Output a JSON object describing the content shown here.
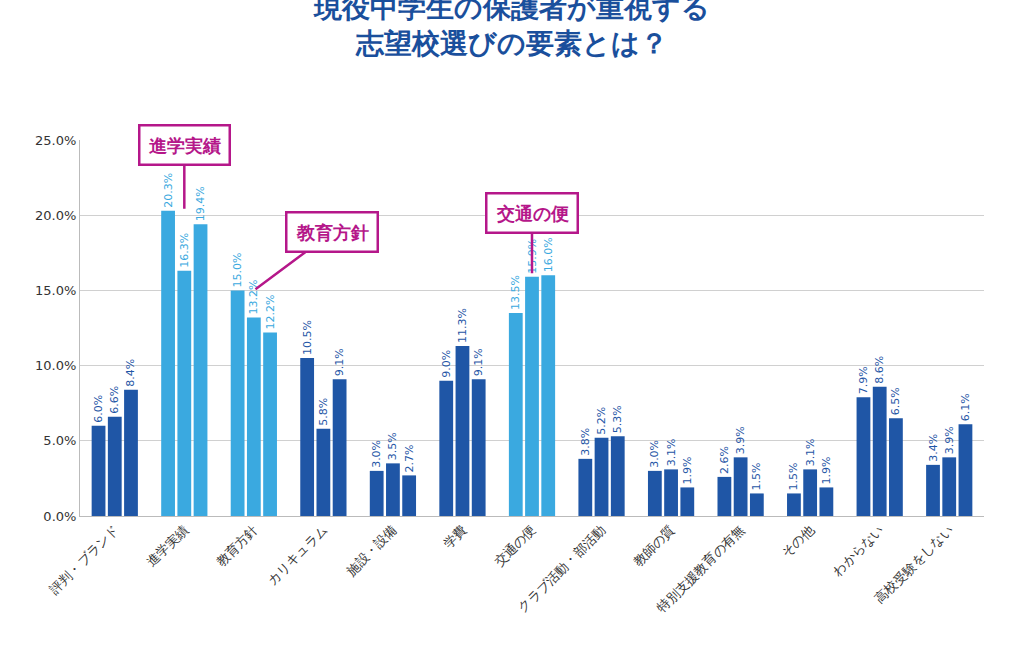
{
  "chart_data": {
    "type": "bar",
    "title": "現役中学生の保護者が重視する\n志望校選びの要素とは？",
    "categories": [
      "評判・ブランド",
      "進学実績",
      "教育方針",
      "カリキュラム",
      "施設・設備",
      "学費",
      "交通の便",
      "クラブ活動・部活動",
      "教師の質",
      "特別支援教育の有無",
      "その他",
      "わからない",
      "高校受験をしない"
    ],
    "series": [
      {
        "values": [
          6.0,
          20.3,
          15.0,
          10.5,
          3.0,
          9.0,
          13.5,
          3.8,
          3.0,
          2.6,
          1.5,
          7.9,
          3.4
        ],
        "value_labels": [
          "6.0%",
          "20.3%",
          "15.0%",
          "10.5%",
          "3.0%",
          "9.0%",
          "13.5%",
          "3.8%",
          "3.0%",
          "2.6%",
          "1.5%",
          "7.9%",
          "3.4%"
        ],
        "colors": [
          "#1f56a6",
          "#3aa9e0",
          "#3aa9e0",
          "#1f56a6",
          "#1f56a6",
          "#1f56a6",
          "#3aa9e0",
          "#1f56a6",
          "#1f56a6",
          "#1f56a6",
          "#1f56a6",
          "#1f56a6",
          "#1f56a6"
        ]
      },
      {
        "values": [
          6.6,
          16.3,
          13.2,
          5.8,
          3.5,
          11.3,
          15.9,
          5.2,
          3.1,
          3.9,
          3.1,
          8.6,
          3.9
        ],
        "value_labels": [
          "6.6%",
          "16.3%",
          "13.2%",
          "5.8%",
          "3.5%",
          "11.3%",
          "15.9%",
          "5.2%",
          "3.1%",
          "3.9%",
          "3.1%",
          "8.6%",
          "3.9%"
        ],
        "colors": [
          "#1f56a6",
          "#3aa9e0",
          "#3aa9e0",
          "#1f56a6",
          "#1f56a6",
          "#1f56a6",
          "#3aa9e0",
          "#1f56a6",
          "#1f56a6",
          "#1f56a6",
          "#1f56a6",
          "#1f56a6",
          "#1f56a6"
        ]
      },
      {
        "values": [
          8.4,
          19.4,
          12.2,
          9.1,
          2.7,
          9.1,
          16.0,
          5.3,
          1.9,
          1.5,
          1.9,
          6.5,
          6.1
        ],
        "value_labels": [
          "8.4%",
          "19.4%",
          "12.2%",
          "9.1%",
          "2.7%",
          "9.1%",
          "16.0%",
          "5.3%",
          "1.9%",
          "1.5%",
          "1.9%",
          "6.5%",
          "6.1%"
        ],
        "colors": [
          "#1f56a6",
          "#3aa9e0",
          "#3aa9e0",
          "#1f56a6",
          "#1f56a6",
          "#1f56a6",
          "#3aa9e0",
          "#1f56a6",
          "#1f56a6",
          "#1f56a6",
          "#1f56a6",
          "#1f56a6",
          "#1f56a6"
        ]
      }
    ],
    "ylim": [
      0,
      25
    ],
    "yticks": [
      {
        "value": 0,
        "label": "0.0%"
      },
      {
        "value": 5,
        "label": "5.0%"
      },
      {
        "value": 10,
        "label": "10.0%"
      },
      {
        "value": 15,
        "label": "15.0%"
      },
      {
        "value": 20,
        "label": "20.0%"
      },
      {
        "value": 25,
        "label": "25.0%"
      }
    ],
    "grid": true,
    "data_labels": true,
    "annotations": [
      "進学実績",
      "交通の便",
      "教育方針"
    ]
  }
}
